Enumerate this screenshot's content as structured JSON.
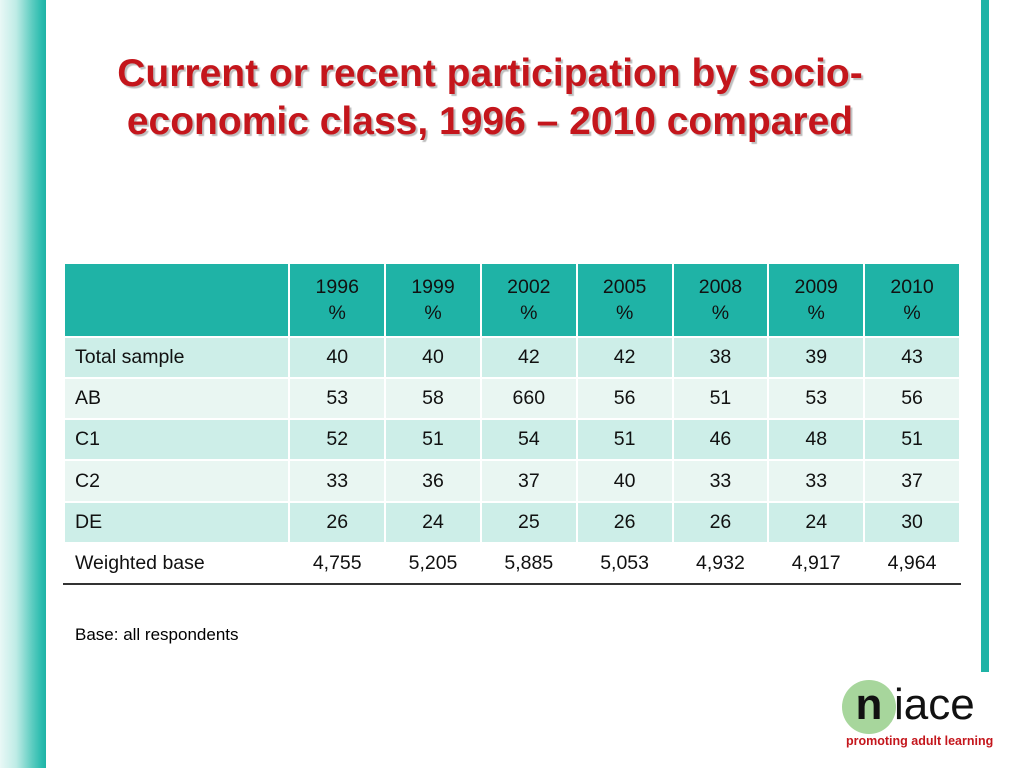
{
  "title": "Current or recent participation by socio-economic class, 1996 – 2010 compared",
  "table": {
    "headers": [
      {
        "year": "1996",
        "unit": "%"
      },
      {
        "year": "1999",
        "unit": "%"
      },
      {
        "year": "2002",
        "unit": "%"
      },
      {
        "year": "2005",
        "unit": "%"
      },
      {
        "year": "2008",
        "unit": "%"
      },
      {
        "year": "2009",
        "unit": "%"
      },
      {
        "year": "2010",
        "unit": "%"
      }
    ],
    "rows": [
      {
        "label": "Total sample",
        "values": [
          "40",
          "40",
          "42",
          "42",
          "38",
          "39",
          "43"
        ]
      },
      {
        "label": "AB",
        "values": [
          "53",
          "58",
          "660",
          "56",
          "51",
          "53",
          "56"
        ]
      },
      {
        "label": "C1",
        "values": [
          "52",
          "51",
          "54",
          "51",
          "46",
          "48",
          "51"
        ]
      },
      {
        "label": "C2",
        "values": [
          "33",
          "36",
          "37",
          "40",
          "33",
          "33",
          "37"
        ]
      },
      {
        "label": "DE",
        "values": [
          "26",
          "24",
          "25",
          "26",
          "26",
          "24",
          "30"
        ]
      },
      {
        "label": "Weighted base",
        "values": [
          "4,755",
          "5,205",
          "5,885",
          "5,053",
          "4,932",
          "4,917",
          "4,964"
        ]
      }
    ]
  },
  "note": "Base: all respondents",
  "logo": {
    "n": "n",
    "rest": "iace",
    "tagline": "promoting adult learning"
  },
  "colors": {
    "accent": "#1fb3a6",
    "title": "#c4161c",
    "row_dark": "#cdeee8",
    "row_light": "#e9f6f2",
    "logo_circle": "#a7d69c"
  }
}
